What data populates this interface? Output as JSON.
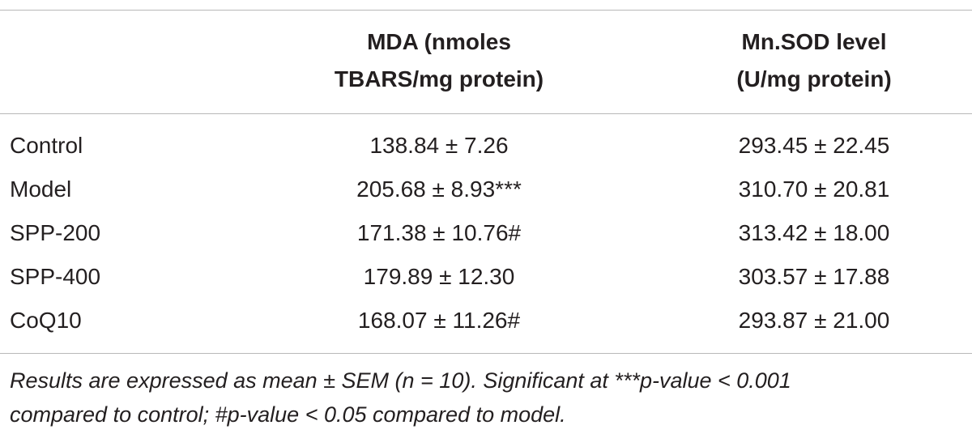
{
  "table": {
    "headers": [
      [
        "MDA (nmoles",
        "TBARS/mg protein)"
      ],
      [
        "Mn.SOD level",
        "(U/mg protein)"
      ]
    ],
    "rows": [
      [
        "Control",
        "138.84 ± 7.26",
        "293.45 ± 22.45"
      ],
      [
        "Model",
        "205.68 ± 8.93***",
        "310.70 ± 20.81"
      ],
      [
        "SPP-200",
        "171.38 ± 10.76#",
        "313.42 ± 18.00"
      ],
      [
        "SPP-400",
        "179.89 ± 12.30",
        "303.57 ± 17.88"
      ],
      [
        "CoQ10",
        "168.07 ± 11.26#",
        "293.87 ± 21.00"
      ]
    ],
    "footnote": [
      "Results are expressed as mean ± SEM (n = 10). Significant at ***p-value < 0.001",
      "compared to control; #p-value < 0.05 compared to model."
    ]
  }
}
